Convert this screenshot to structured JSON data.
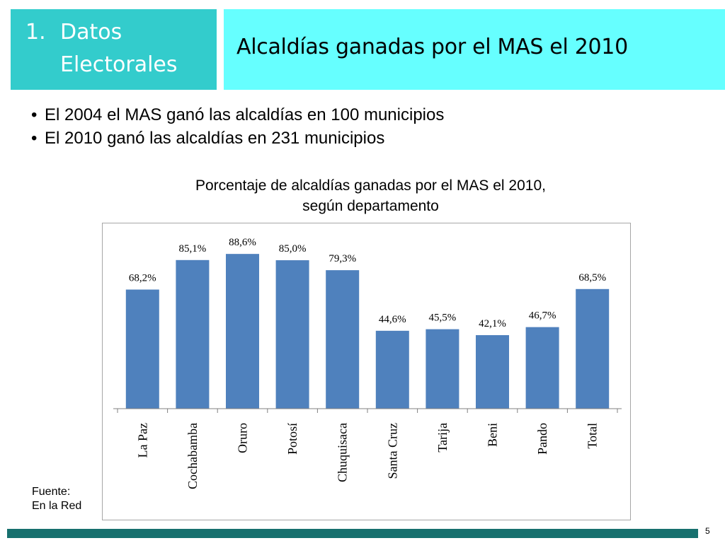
{
  "section": {
    "number": "1.",
    "line1": "Datos",
    "line2": "Electorales"
  },
  "slide_title": "Alcaldías ganadas por el MAS el 2010",
  "bullets": [
    "El 2004 el MAS ganó las alcaldías en 100 municipios",
    "El 2010 ganó las alcaldías en 231 municipios"
  ],
  "bullet_symbol": "•",
  "source": {
    "line1": "Fuente:",
    "line2": "En la Red"
  },
  "page_number": "5",
  "colors": {
    "section_bg": "#33cccc",
    "title_bg": "#66ffff",
    "bar": "#4f81bd",
    "footer": "#17706e"
  },
  "chart_data": {
    "type": "bar",
    "title_line1": "Porcentaje de alcaldías ganadas por el MAS el 2010,",
    "title_line2": "según departamento",
    "categories": [
      "La Paz",
      "Cochabamba",
      "Oruro",
      "Potosí",
      "Chuquisaca",
      "Santa Cruz",
      "Tarija",
      "Beni",
      "Pando",
      "Total"
    ],
    "values": [
      68.2,
      85.1,
      88.6,
      85.0,
      79.3,
      44.6,
      45.5,
      42.1,
      46.7,
      68.5
    ],
    "data_labels": [
      "68,2%",
      "85,1%",
      "88,6%",
      "85,0%",
      "79,3%",
      "44,6%",
      "45,5%",
      "42,1%",
      "46,7%",
      "68,5%"
    ],
    "ylim": [
      0,
      100
    ],
    "grid": false,
    "legend": "none",
    "xlabel": "",
    "ylabel": ""
  }
}
